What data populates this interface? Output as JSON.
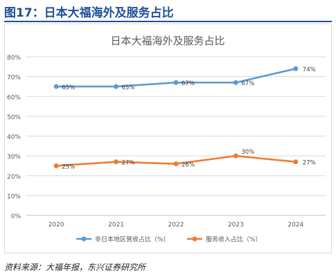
{
  "heading": "图17：日本大福海外及服务占比",
  "source": "资料来源：大福年报，东兴证券研究所",
  "chart_data": {
    "type": "line",
    "title": "日本大福海外及服务占比",
    "x": [
      "2020",
      "2021",
      "2022",
      "2023",
      "2024"
    ],
    "ylim": [
      0,
      80
    ],
    "yticks": [
      0,
      10,
      20,
      30,
      40,
      50,
      60,
      70,
      80
    ],
    "ytick_labels": [
      "0%",
      "10%",
      "20%",
      "30%",
      "40%",
      "50%",
      "60%",
      "70%",
      "80%"
    ],
    "grid": true,
    "legend_position": "bottom",
    "series": [
      {
        "name": "非日本地区营收占比（%）",
        "color": "#5b9bd5",
        "values": [
          65,
          65,
          67,
          67,
          74
        ],
        "labels": [
          "65%",
          "65%",
          "67%",
          "67%",
          "74%"
        ]
      },
      {
        "name": "服务收入占比（%）",
        "color": "#ed7d31",
        "values": [
          25,
          27,
          26,
          30,
          27
        ],
        "labels": [
          "25%",
          "27%",
          "26%",
          "30%",
          "27%"
        ]
      }
    ]
  }
}
